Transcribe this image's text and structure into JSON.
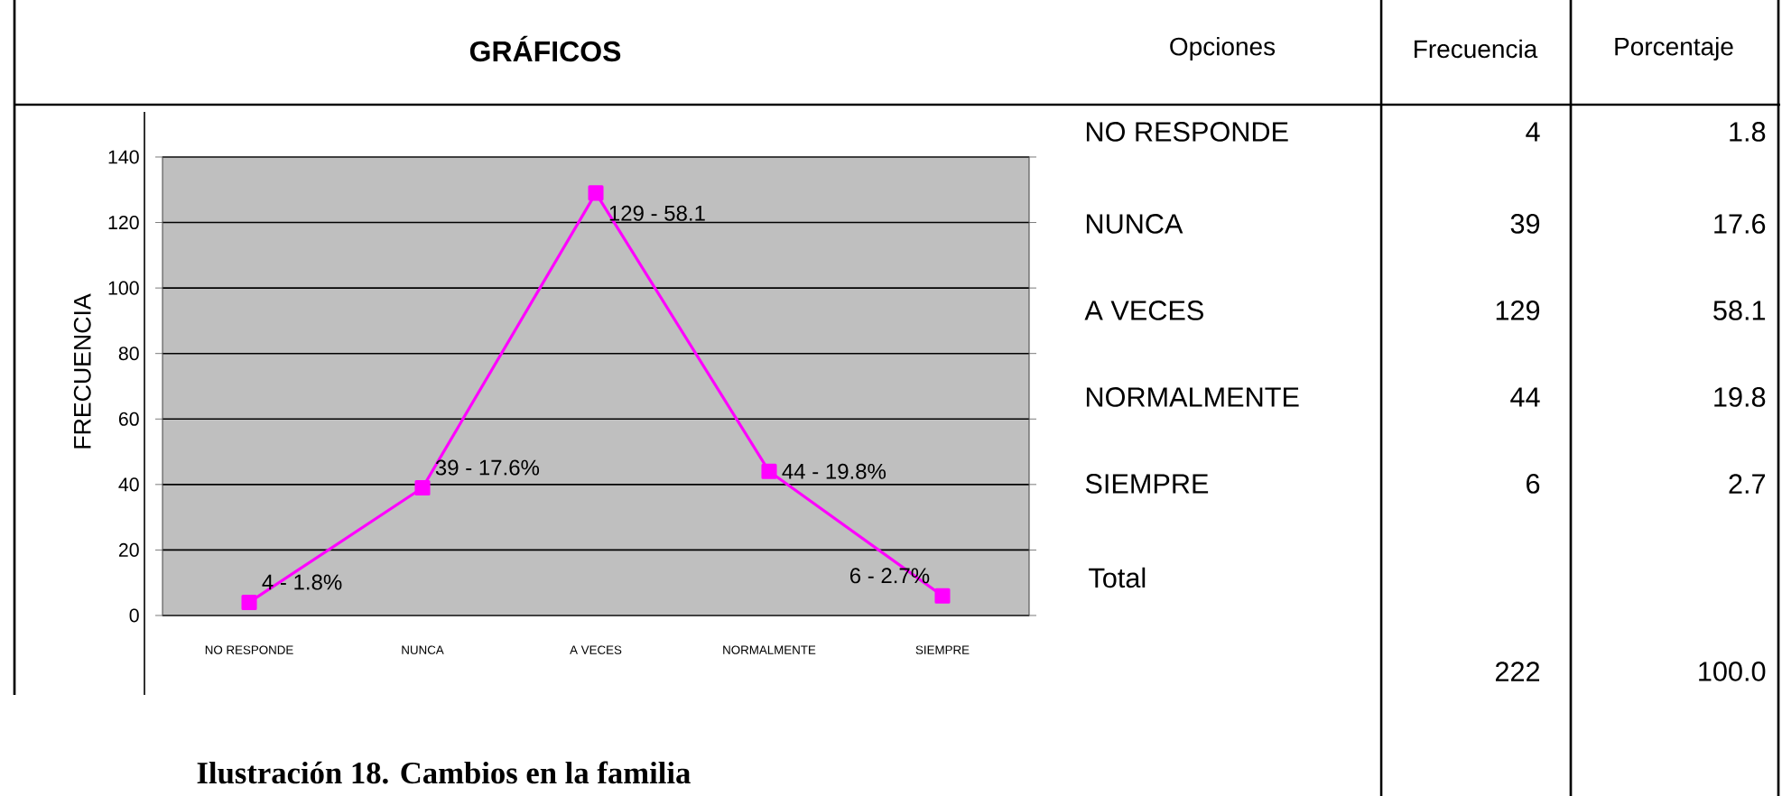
{
  "chart_data": {
    "type": "line",
    "title": "Ilustración 18.  Cambios en la familia",
    "ylabel": "FRECUENCIA",
    "categories": [
      "NO RESPONDE",
      "NUNCA",
      "A VECES",
      "NORMALMENTE",
      "SIEMPRE"
    ],
    "series": [
      {
        "color": "#ff00ff",
        "values": [
          4,
          39,
          129,
          44,
          6
        ],
        "value_labels": [
          "4 - 1.8%",
          "39 - 17.6%",
          "129 - 58.1",
          "44 - 19.8%",
          "6 - 2.7%"
        ]
      }
    ],
    "ylim": [
      0,
      140
    ],
    "yticks": [
      0,
      20,
      40,
      60,
      80,
      100,
      120,
      140
    ],
    "grid": "y",
    "marker": "square",
    "line_style": "solid",
    "annotations": [
      "GRÁFICOS",
      "Opciones",
      "Frecuencia",
      "Porcentaje",
      "4",
      "1.8",
      "39",
      "17.6",
      "129",
      "58.1",
      "44",
      "19.8",
      "6",
      "2.7",
      "Total",
      "222",
      "100.0"
    ]
  }
}
